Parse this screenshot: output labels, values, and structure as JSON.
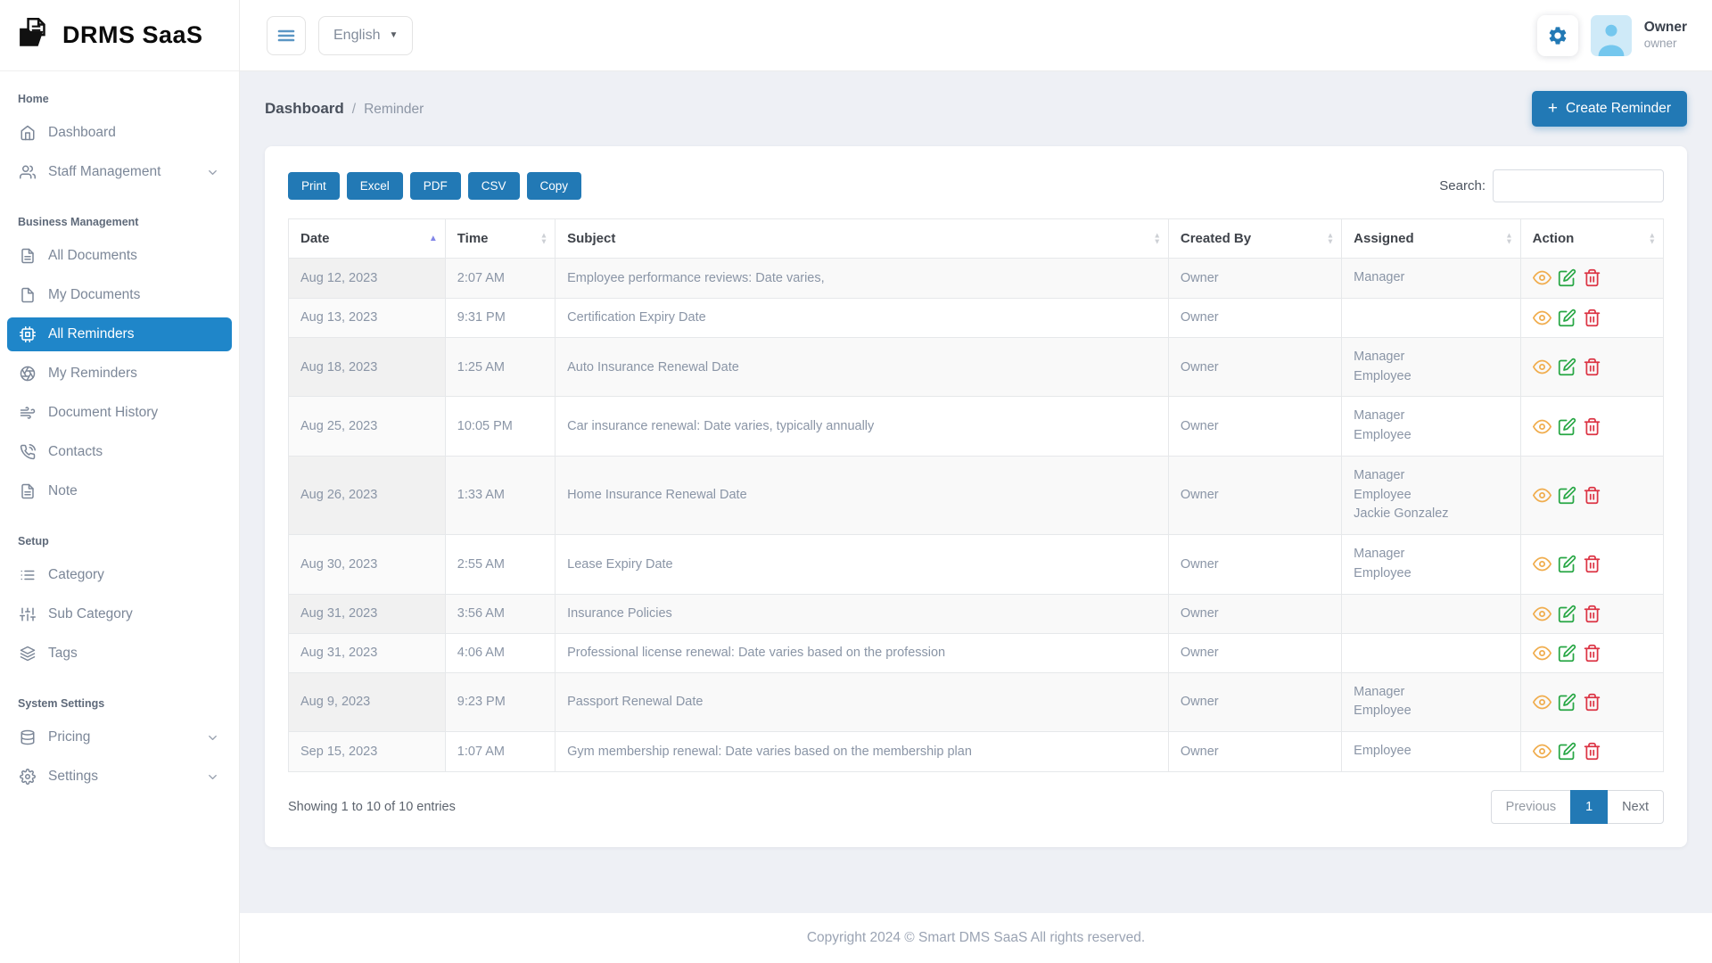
{
  "brand": {
    "name": "DRMS SaaS"
  },
  "topbar": {
    "language": "English",
    "user_name": "Owner",
    "user_role": "owner"
  },
  "page": {
    "breadcrumb_parent": "Dashboard",
    "breadcrumb_separator": "/",
    "breadcrumb_current": "Reminder",
    "create_button": "Create Reminder"
  },
  "sidebar": {
    "sections": [
      {
        "title": "Home",
        "items": [
          {
            "label": "Dashboard",
            "icon": "home-icon"
          },
          {
            "label": "Staff Management",
            "icon": "users-icon",
            "expandable": true
          }
        ]
      },
      {
        "title": "Business Management",
        "items": [
          {
            "label": "All Documents",
            "icon": "file-text-icon"
          },
          {
            "label": "My Documents",
            "icon": "file-icon"
          },
          {
            "label": "All Reminders",
            "icon": "cpu-icon",
            "active": true
          },
          {
            "label": "My Reminders",
            "icon": "aperture-icon"
          },
          {
            "label": "Document History",
            "icon": "wind-icon"
          },
          {
            "label": "Contacts",
            "icon": "phone-call-icon"
          },
          {
            "label": "Note",
            "icon": "note-icon"
          }
        ]
      },
      {
        "title": "Setup",
        "items": [
          {
            "label": "Category",
            "icon": "list-icon"
          },
          {
            "label": "Sub Category",
            "icon": "sliders-icon"
          },
          {
            "label": "Tags",
            "icon": "layers-icon"
          }
        ]
      },
      {
        "title": "System Settings",
        "items": [
          {
            "label": "Pricing",
            "icon": "database-icon",
            "expandable": true
          },
          {
            "label": "Settings",
            "icon": "settings-icon",
            "expandable": true
          }
        ]
      }
    ]
  },
  "toolbar": {
    "export_buttons": [
      "Print",
      "Excel",
      "PDF",
      "CSV",
      "Copy"
    ],
    "search_label": "Search:",
    "search_value": ""
  },
  "table": {
    "columns": [
      {
        "label": "Date",
        "sort": "asc"
      },
      {
        "label": "Time",
        "sort": "both"
      },
      {
        "label": "Subject",
        "sort": "both"
      },
      {
        "label": "Created By",
        "sort": "both"
      },
      {
        "label": "Assigned",
        "sort": "both"
      },
      {
        "label": "Action",
        "sort": "both"
      }
    ],
    "column_widths": [
      "11.4%",
      "8%",
      "44.6%",
      "12.6%",
      "13%",
      "10.4%"
    ],
    "rows": [
      {
        "date": "Aug 12, 2023",
        "time": "2:07 AM",
        "subject": "Employee performance reviews: Date varies,",
        "created_by": "Owner",
        "assigned": [
          "Manager"
        ]
      },
      {
        "date": "Aug 13, 2023",
        "time": "9:31 PM",
        "subject": "Certification Expiry Date",
        "created_by": "Owner",
        "assigned": []
      },
      {
        "date": "Aug 18, 2023",
        "time": "1:25 AM",
        "subject": "Auto Insurance Renewal Date",
        "created_by": "Owner",
        "assigned": [
          "Manager",
          "Employee"
        ]
      },
      {
        "date": "Aug 25, 2023",
        "time": "10:05 PM",
        "subject": "Car insurance renewal: Date varies, typically annually",
        "created_by": "Owner",
        "assigned": [
          "Manager",
          "Employee"
        ]
      },
      {
        "date": "Aug 26, 2023",
        "time": "1:33 AM",
        "subject": "Home Insurance Renewal Date",
        "created_by": "Owner",
        "assigned": [
          "Manager",
          "Employee",
          "Jackie Gonzalez"
        ]
      },
      {
        "date": "Aug 30, 2023",
        "time": "2:55 AM",
        "subject": "Lease Expiry Date",
        "created_by": "Owner",
        "assigned": [
          "Manager",
          "Employee"
        ]
      },
      {
        "date": "Aug 31, 2023",
        "time": "3:56 AM",
        "subject": "Insurance Policies",
        "created_by": "Owner",
        "assigned": []
      },
      {
        "date": "Aug 31, 2023",
        "time": "4:06 AM",
        "subject": "Professional license renewal: Date varies based on the profession",
        "created_by": "Owner",
        "assigned": []
      },
      {
        "date": "Aug 9, 2023",
        "time": "9:23 PM",
        "subject": "Passport Renewal Date",
        "created_by": "Owner",
        "assigned": [
          "Manager",
          "Employee"
        ]
      },
      {
        "date": "Sep 15, 2023",
        "time": "1:07 AM",
        "subject": "Gym membership renewal: Date varies based on the membership plan",
        "created_by": "Owner",
        "assigned": [
          "Employee"
        ]
      }
    ],
    "row_actions": [
      "view",
      "edit",
      "delete"
    ]
  },
  "pagination": {
    "info": "Showing 1 to 10 of 10 entries",
    "previous_label": "Previous",
    "current_page": "1",
    "next_label": "Next"
  },
  "footer": {
    "copyright": "Copyright 2024 © Smart DMS SaaS All rights reserved."
  },
  "colors": {
    "primary": "#2279b5",
    "sidebar_active_bg": "#1f86c9",
    "view_icon": "#f0ad4e",
    "edit_icon": "#28a745",
    "delete_icon": "#dc3545",
    "sort_active": "#8286e8"
  }
}
